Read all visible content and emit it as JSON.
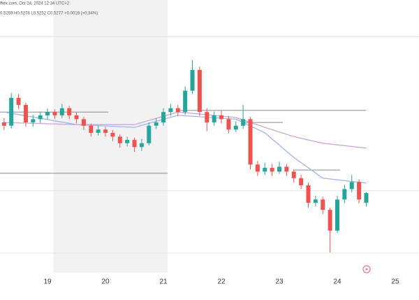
{
  "header": {
    "source": "ffiex.com, Oct 24, 2024 12:34 UTC+2",
    "ohlc": "0.5259 H0.5278 L0.5252 C0.5277 +0.0018 (+0.34%)"
  },
  "chart_data": {
    "type": "candlestick",
    "xlim": [
      18.18,
      25.41
    ],
    "ylim": [
      0.5131,
      0.563
    ],
    "xticks": [
      19,
      20,
      21,
      22,
      23,
      24,
      25
    ],
    "up_color": "#26a69a",
    "down_color": "#ef5350",
    "highlight_x": [
      19.1,
      21.07
    ],
    "grid_levels": [
      0.5563,
      0.5281,
      0.5167
    ],
    "levels": [
      {
        "value": 0.5425,
        "x": [
          18.18,
          20.05
        ]
      },
      {
        "value": 0.5428,
        "x": [
          21.25,
          24.5
        ]
      },
      {
        "value": 0.5406,
        "x": [
          22.4,
          23.06
        ]
      },
      {
        "value": 0.5313,
        "x": [
          18.18,
          21.07
        ]
      },
      {
        "value": 0.5319,
        "x": [
          23.24,
          24.05
        ]
      }
    ],
    "x": [
      18.25,
      18.375,
      18.5,
      18.625,
      18.75,
      18.875,
      19,
      19.125,
      19.25,
      19.375,
      19.5,
      19.625,
      19.75,
      19.875,
      20,
      20.125,
      20.25,
      20.375,
      20.5,
      20.625,
      20.75,
      20.875,
      21,
      21.125,
      21.25,
      21.375,
      21.5,
      21.625,
      21.75,
      21.875,
      22,
      22.125,
      22.25,
      22.375,
      22.5,
      22.625,
      22.75,
      22.875,
      23,
      23.125,
      23.25,
      23.375,
      23.5,
      23.625,
      23.75,
      23.875,
      24,
      24.125,
      24.25,
      24.375,
      24.5
    ],
    "open": [
      0.5406,
      0.54,
      0.5451,
      0.5438,
      0.5406,
      0.5412,
      0.5419,
      0.5425,
      0.5419,
      0.5432,
      0.5419,
      0.5412,
      0.54,
      0.5387,
      0.5393,
      0.5387,
      0.538,
      0.5368,
      0.5374,
      0.5361,
      0.5368,
      0.54,
      0.5406,
      0.5425,
      0.5432,
      0.5425,
      0.5464,
      0.5502,
      0.5425,
      0.5406,
      0.5419,
      0.5412,
      0.5393,
      0.54,
      0.5412,
      0.5329,
      0.5316,
      0.5323,
      0.5316,
      0.5325,
      0.5316,
      0.5304,
      0.5291,
      0.5259,
      0.5265,
      0.5246,
      0.5208,
      0.5265,
      0.5284,
      0.5297,
      0.5259
    ],
    "high": [
      0.5414,
      0.546,
      0.5458,
      0.5442,
      0.542,
      0.5426,
      0.5432,
      0.543,
      0.544,
      0.5436,
      0.5424,
      0.5416,
      0.5404,
      0.54,
      0.5398,
      0.5392,
      0.5384,
      0.538,
      0.5378,
      0.5376,
      0.5406,
      0.5414,
      0.5432,
      0.544,
      0.5438,
      0.5472,
      0.552,
      0.5508,
      0.5432,
      0.5426,
      0.5428,
      0.5418,
      0.5408,
      0.5438,
      0.5416,
      0.5336,
      0.5332,
      0.533,
      0.5334,
      0.533,
      0.532,
      0.531,
      0.5296,
      0.5272,
      0.527,
      0.525,
      0.5272,
      0.5292,
      0.531,
      0.5302,
      0.5278
    ],
    "low": [
      0.5392,
      0.5395,
      0.543,
      0.5398,
      0.5398,
      0.5405,
      0.5412,
      0.5412,
      0.5414,
      0.5412,
      0.5404,
      0.5392,
      0.538,
      0.5382,
      0.538,
      0.5372,
      0.536,
      0.5362,
      0.5352,
      0.5354,
      0.5364,
      0.5394,
      0.54,
      0.5418,
      0.5418,
      0.542,
      0.5458,
      0.5418,
      0.539,
      0.54,
      0.5404,
      0.5386,
      0.5388,
      0.5394,
      0.532,
      0.5308,
      0.531,
      0.5308,
      0.5312,
      0.5308,
      0.5296,
      0.5284,
      0.525,
      0.5252,
      0.5238,
      0.5168,
      0.5204,
      0.5258,
      0.5278,
      0.5258,
      0.5252
    ],
    "close": [
      0.54,
      0.5451,
      0.5438,
      0.5406,
      0.5412,
      0.5419,
      0.5425,
      0.5419,
      0.5432,
      0.5419,
      0.5412,
      0.54,
      0.5387,
      0.5393,
      0.5387,
      0.538,
      0.5368,
      0.5374,
      0.5361,
      0.5368,
      0.54,
      0.5406,
      0.5425,
      0.5432,
      0.5425,
      0.5464,
      0.5502,
      0.5425,
      0.5406,
      0.5419,
      0.5412,
      0.5393,
      0.54,
      0.5412,
      0.5329,
      0.5316,
      0.5323,
      0.5316,
      0.5325,
      0.5316,
      0.5304,
      0.5291,
      0.5259,
      0.5265,
      0.5246,
      0.5208,
      0.5265,
      0.5284,
      0.5297,
      0.5265,
      0.5277
    ],
    "series": [
      {
        "color": "#9fb4e8",
        "x": [
          18.25,
          19.5,
          20.5,
          21.25,
          22.25,
          22.75,
          23.25,
          23.75,
          24.5
        ],
        "values": [
          0.5425,
          0.5402,
          0.5397,
          0.5419,
          0.5412,
          0.5387,
          0.5342,
          0.5304,
          0.5295
        ]
      },
      {
        "color": "#c9a7d8",
        "x": [
          18.25,
          19.5,
          20.5,
          21.25,
          22.25,
          22.75,
          23.25,
          23.75,
          24.5
        ],
        "values": [
          0.5406,
          0.5402,
          0.5402,
          0.5425,
          0.5415,
          0.5397,
          0.538,
          0.5368,
          0.5359
        ]
      }
    ]
  }
}
